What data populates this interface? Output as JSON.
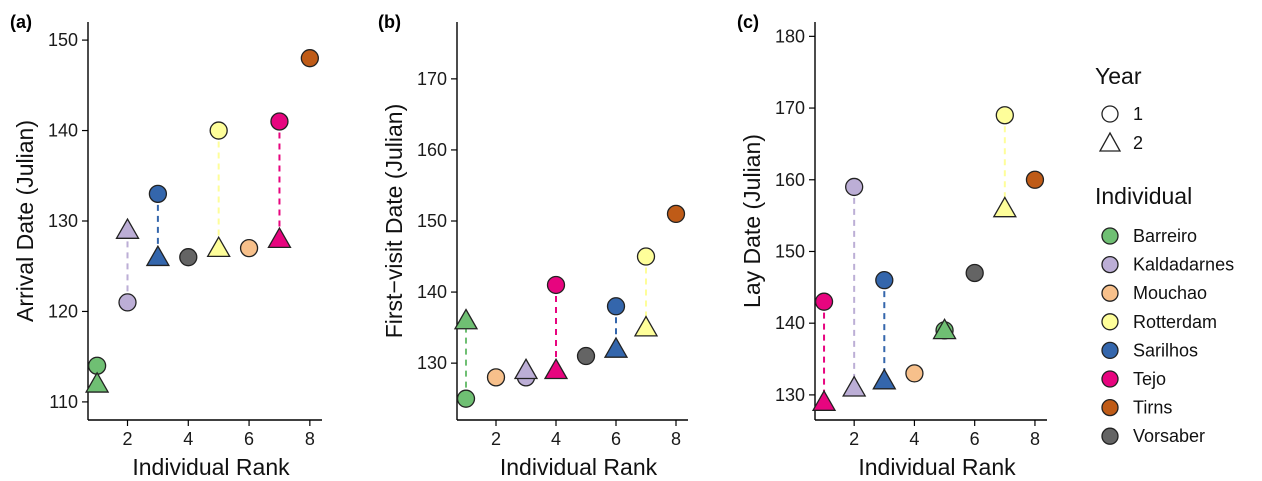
{
  "legend": {
    "year_title": "Year",
    "year_items": [
      {
        "label": "1",
        "shape": "circle-icon"
      },
      {
        "label": "2",
        "shape": "triangle-icon"
      }
    ],
    "individual_title": "Individual",
    "individuals": [
      {
        "name": "Barreiro",
        "color": "#6fbf73"
      },
      {
        "name": "Kaldadarnes",
        "color": "#bcaed6"
      },
      {
        "name": "Mouchao",
        "color": "#f7c08b"
      },
      {
        "name": "Rotterdam",
        "color": "#fefe9a"
      },
      {
        "name": "Sarilhos",
        "color": "#3466ac"
      },
      {
        "name": "Tejo",
        "color": "#e7057f"
      },
      {
        "name": "Tirns",
        "color": "#bf5b17"
      },
      {
        "name": "Vorsaber",
        "color": "#646464"
      }
    ]
  },
  "chart_data": [
    {
      "type": "scatter",
      "panel_label": "(a)",
      "xlabel": "Individual Rank",
      "ylabel": "Arrival Date (Julian)",
      "xlim": [
        0.7,
        8.4
      ],
      "ylim": [
        108,
        152
      ],
      "xticks": [
        2,
        4,
        6,
        8
      ],
      "yticks": [
        110,
        120,
        130,
        140,
        150
      ],
      "points": [
        {
          "individual": "Barreiro",
          "x": 1,
          "year": 1,
          "y": 114
        },
        {
          "individual": "Barreiro",
          "x": 1,
          "year": 2,
          "y": 112
        },
        {
          "individual": "Kaldadarnes",
          "x": 2,
          "year": 1,
          "y": 121
        },
        {
          "individual": "Kaldadarnes",
          "x": 2,
          "year": 2,
          "y": 129
        },
        {
          "individual": "Sarilhos",
          "x": 3,
          "year": 1,
          "y": 133
        },
        {
          "individual": "Sarilhos",
          "x": 3,
          "year": 2,
          "y": 126
        },
        {
          "individual": "Vorsaber",
          "x": 4,
          "year": 1,
          "y": 126
        },
        {
          "individual": "Rotterdam",
          "x": 5,
          "year": 1,
          "y": 140
        },
        {
          "individual": "Rotterdam",
          "x": 5,
          "year": 2,
          "y": 127
        },
        {
          "individual": "Mouchao",
          "x": 6,
          "year": 1,
          "y": 127
        },
        {
          "individual": "Tejo",
          "x": 7,
          "year": 1,
          "y": 141
        },
        {
          "individual": "Tejo",
          "x": 7,
          "year": 2,
          "y": 128
        },
        {
          "individual": "Tirns",
          "x": 8,
          "year": 1,
          "y": 148
        }
      ]
    },
    {
      "type": "scatter",
      "panel_label": "(b)",
      "xlabel": "Individual Rank",
      "ylabel": "First−visit Date (Julian)",
      "xlim": [
        0.7,
        8.4
      ],
      "ylim": [
        122,
        178
      ],
      "xticks": [
        2,
        4,
        6,
        8
      ],
      "yticks": [
        130,
        140,
        150,
        160,
        170
      ],
      "points": [
        {
          "individual": "Barreiro",
          "x": 1,
          "year": 1,
          "y": 125
        },
        {
          "individual": "Barreiro",
          "x": 1,
          "year": 2,
          "y": 136
        },
        {
          "individual": "Mouchao",
          "x": 2,
          "year": 1,
          "y": 128
        },
        {
          "individual": "Kaldadarnes",
          "x": 3,
          "year": 1,
          "y": 128
        },
        {
          "individual": "Kaldadarnes",
          "x": 3,
          "year": 2,
          "y": 129
        },
        {
          "individual": "Tejo",
          "x": 4,
          "year": 1,
          "y": 141
        },
        {
          "individual": "Tejo",
          "x": 4,
          "year": 2,
          "y": 129
        },
        {
          "individual": "Vorsaber",
          "x": 5,
          "year": 1,
          "y": 131
        },
        {
          "individual": "Sarilhos",
          "x": 6,
          "year": 1,
          "y": 138
        },
        {
          "individual": "Sarilhos",
          "x": 6,
          "year": 2,
          "y": 132
        },
        {
          "individual": "Rotterdam",
          "x": 7,
          "year": 1,
          "y": 145
        },
        {
          "individual": "Rotterdam",
          "x": 7,
          "year": 2,
          "y": 135
        },
        {
          "individual": "Tirns",
          "x": 8,
          "year": 1,
          "y": 151
        }
      ]
    },
    {
      "type": "scatter",
      "panel_label": "(c)",
      "xlabel": "Individual Rank",
      "ylabel": "Lay Date (Julian)",
      "xlim": [
        0.7,
        8.4
      ],
      "ylim": [
        126.5,
        182
      ],
      "xticks": [
        2,
        4,
        6,
        8
      ],
      "yticks": [
        130,
        140,
        150,
        160,
        170,
        180
      ],
      "points": [
        {
          "individual": "Tejo",
          "x": 1,
          "year": 1,
          "y": 143
        },
        {
          "individual": "Tejo",
          "x": 1,
          "year": 2,
          "y": 129
        },
        {
          "individual": "Kaldadarnes",
          "x": 2,
          "year": 1,
          "y": 159
        },
        {
          "individual": "Kaldadarnes",
          "x": 2,
          "year": 2,
          "y": 131
        },
        {
          "individual": "Sarilhos",
          "x": 3,
          "year": 1,
          "y": 146
        },
        {
          "individual": "Sarilhos",
          "x": 3,
          "year": 2,
          "y": 132
        },
        {
          "individual": "Mouchao",
          "x": 4,
          "year": 1,
          "y": 133
        },
        {
          "individual": "Barreiro",
          "x": 5,
          "year": 1,
          "y": 139
        },
        {
          "individual": "Barreiro",
          "x": 5,
          "year": 2,
          "y": 139
        },
        {
          "individual": "Vorsaber",
          "x": 6,
          "year": 1,
          "y": 147
        },
        {
          "individual": "Rotterdam",
          "x": 7,
          "year": 1,
          "y": 169
        },
        {
          "individual": "Rotterdam",
          "x": 7,
          "year": 2,
          "y": 156
        },
        {
          "individual": "Tirns",
          "x": 8,
          "year": 1,
          "y": 160
        }
      ]
    }
  ]
}
